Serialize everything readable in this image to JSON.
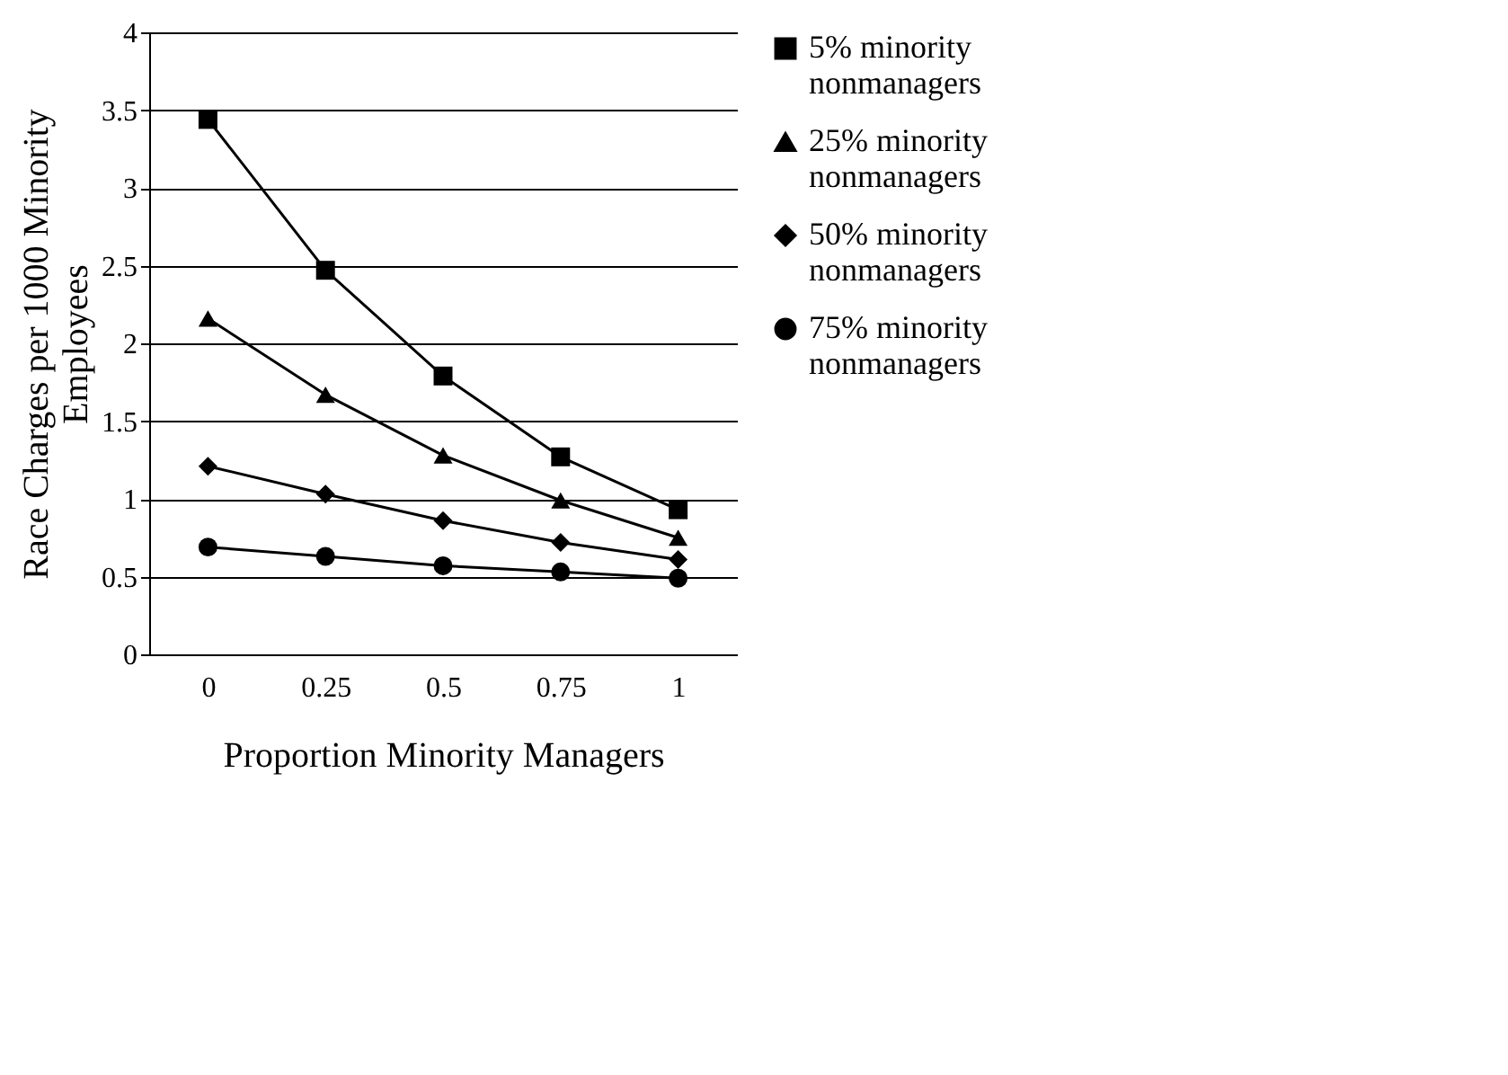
{
  "chart_data": {
    "type": "line",
    "xlabel": "Proportion Minority Managers",
    "ylabel": "Race Charges per 1000 Minority Employees",
    "categories": [
      "0",
      "0.25",
      "0.5",
      "0.75",
      "1"
    ],
    "series": [
      {
        "name": "5% minority nonmanagers",
        "color": "#000000",
        "marker": "square",
        "values": [
          3.44,
          2.47,
          1.79,
          1.27,
          0.93
        ]
      },
      {
        "name": "25% minority nonmanagers",
        "color": "#000000",
        "marker": "triangle",
        "values": [
          2.16,
          1.67,
          1.28,
          0.99,
          0.75
        ]
      },
      {
        "name": "50% minority nonmanagers",
        "color": "#000000",
        "marker": "diamond",
        "values": [
          1.21,
          1.03,
          0.86,
          0.72,
          0.61
        ]
      },
      {
        "name": "75% minority nonmanagers",
        "color": "#000000",
        "marker": "circle",
        "values": [
          0.69,
          0.63,
          0.57,
          0.53,
          0.49
        ]
      }
    ],
    "ylim": [
      0,
      4
    ],
    "yticks": [
      0,
      0.5,
      1,
      1.5,
      2,
      2.5,
      3,
      3.5,
      4
    ],
    "grid": "y",
    "legend": "right",
    "line_style": "solid"
  }
}
